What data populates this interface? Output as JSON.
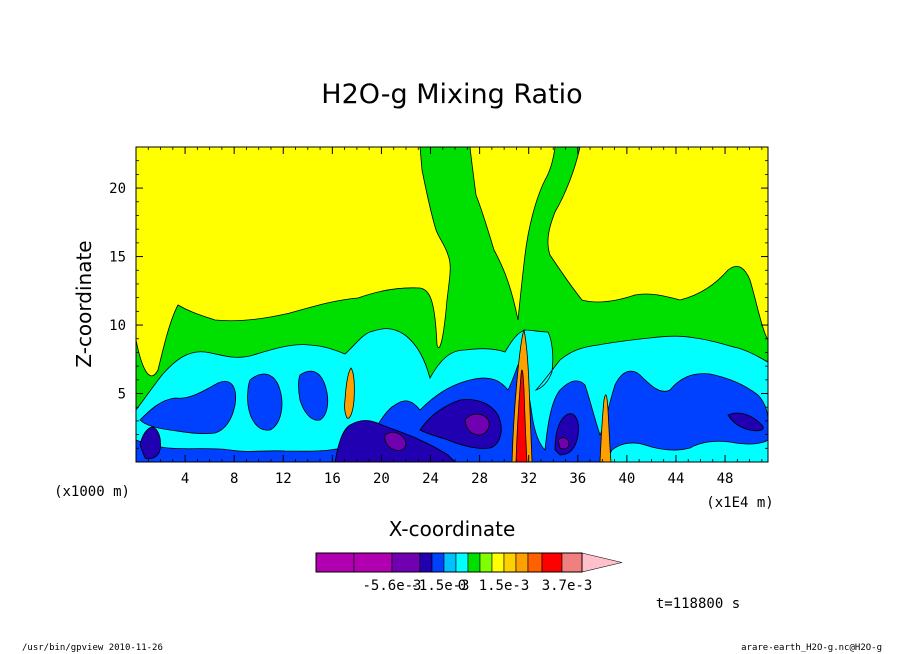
{
  "chart_data": {
    "type": "heatmap",
    "title": "H2O-g Mixing Ratio",
    "xlabel": "X-coordinate",
    "ylabel": "Z-coordinate",
    "x_unit_left": "(x1000 m)",
    "x_unit_right": "(x1E4 m)",
    "xlim": [
      0,
      51.5
    ],
    "ylim": [
      0,
      23
    ],
    "x_ticks": [
      4,
      8,
      12,
      16,
      20,
      24,
      28,
      32,
      36,
      40,
      44,
      48
    ],
    "y_ticks": [
      5,
      10,
      15,
      20
    ],
    "time_label": "t=118800 s",
    "colorbar": {
      "colors": [
        "#b000b0",
        "#b000b0",
        "#7000b0",
        "#2000b0",
        "#0040ff",
        "#00c0ff",
        "#00ffff",
        "#00e000",
        "#80ff00",
        "#ffff00",
        "#ffd000",
        "#ffa000",
        "#ff6000",
        "#ff0000",
        "#f08080"
      ],
      "extend_color": "#ffc0cb",
      "labels": [
        "-5.6e-3",
        "-1.5e-3",
        "0",
        "1.5e-3",
        "3.7e-3"
      ]
    },
    "field_levels": {
      "yellow": "#ffff00",
      "green": "#00e000",
      "cyan": "#00ffff",
      "blue": "#0040ff",
      "darkblue": "#2000b0",
      "purple": "#7000b0",
      "orange": "#ffa000",
      "red": "#ff0000"
    }
  },
  "footer": {
    "left": "/usr/bin/gpview  2010-11-26",
    "right": "arare-earth_H2O-g.nc@H2O-g"
  }
}
